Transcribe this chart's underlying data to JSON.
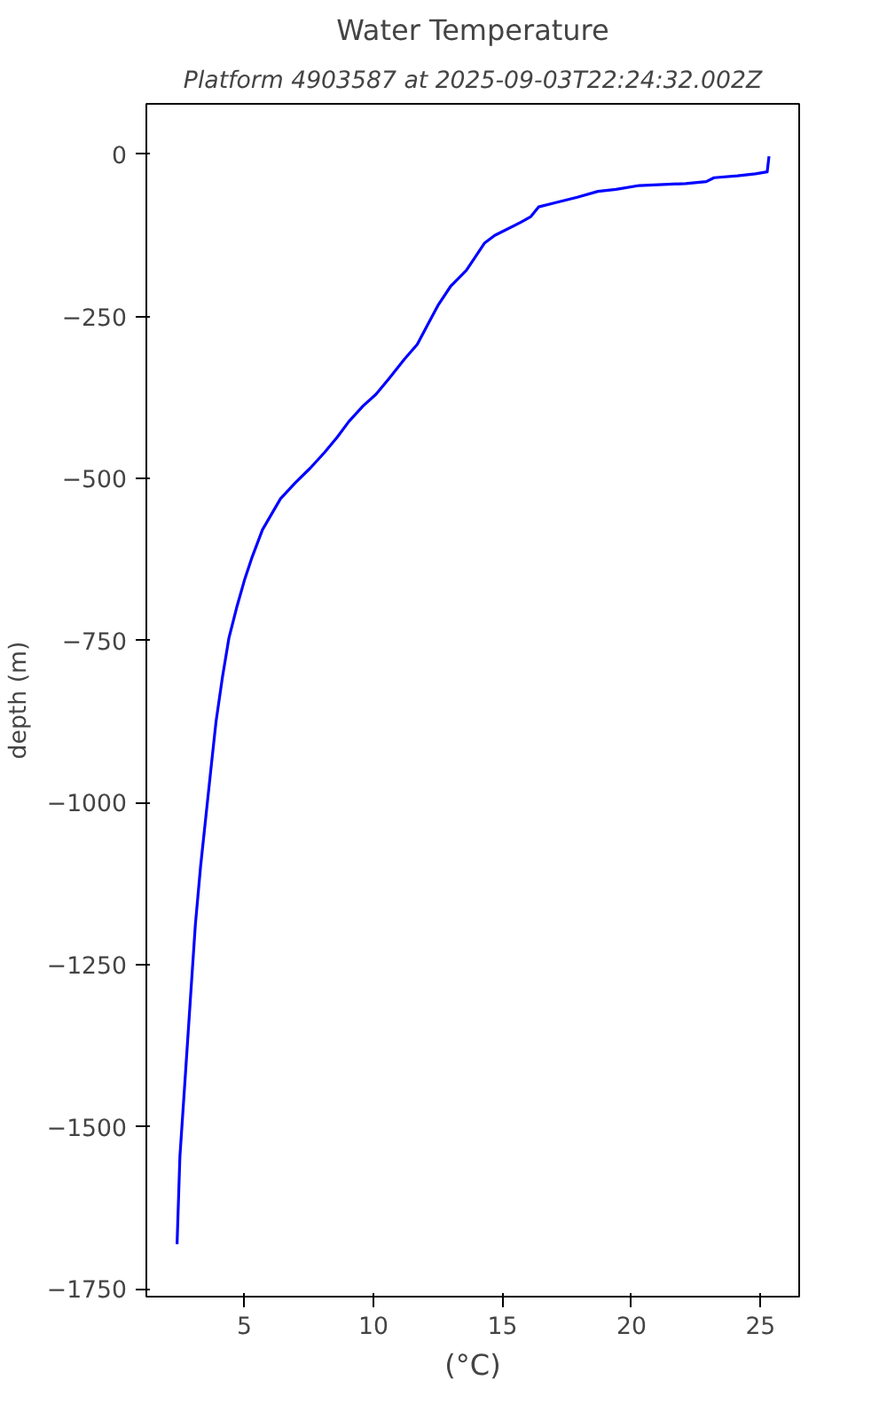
{
  "chart_data": {
    "type": "line",
    "title": "Water Temperature",
    "subtitle": "Platform 4903587 at 2025-09-03T22:24:32.002Z",
    "xlabel": "(°C)",
    "ylabel": "depth (m)",
    "xlim": [
      1.2,
      26.5
    ],
    "ylim": [
      -1762,
      78
    ],
    "xticks": [
      5,
      10,
      15,
      20,
      25
    ],
    "yticks": [
      0,
      -250,
      -500,
      -750,
      -1000,
      -1250,
      -1500,
      -1750
    ],
    "grid": false,
    "series": [
      {
        "color": "#0000ff",
        "x": [
          25.33,
          25.26,
          24.8,
          24.1,
          23.2,
          22.9,
          22.1,
          20.3,
          19.4,
          18.7,
          17.9,
          17.0,
          16.4,
          16.1,
          15.7,
          14.7,
          14.3,
          13.9,
          13.6,
          13.0,
          12.5,
          12.1,
          11.7,
          11.2,
          10.6,
          10.1,
          9.6,
          9.05,
          8.6,
          8.1,
          7.55,
          6.96,
          6.4,
          6.05,
          5.7,
          5.3,
          5.0,
          4.7,
          4.4,
          4.15,
          3.9,
          3.7,
          3.5,
          3.3,
          3.1,
          2.9,
          2.7,
          2.5,
          2.39
        ],
        "values": [
          -3,
          -27,
          -30,
          -33,
          -36,
          -42,
          -45,
          -48,
          -54,
          -57,
          -66,
          -75,
          -81,
          -96,
          -105,
          -125,
          -137,
          -161,
          -179,
          -203,
          -233,
          -263,
          -293,
          -316,
          -346,
          -370,
          -388,
          -412,
          -436,
          -460,
          -484,
          -507,
          -531,
          -555,
          -579,
          -621,
          -657,
          -699,
          -746,
          -806,
          -875,
          -949,
          -1024,
          -1099,
          -1188,
          -1307,
          -1427,
          -1546,
          -1681
        ]
      }
    ]
  }
}
